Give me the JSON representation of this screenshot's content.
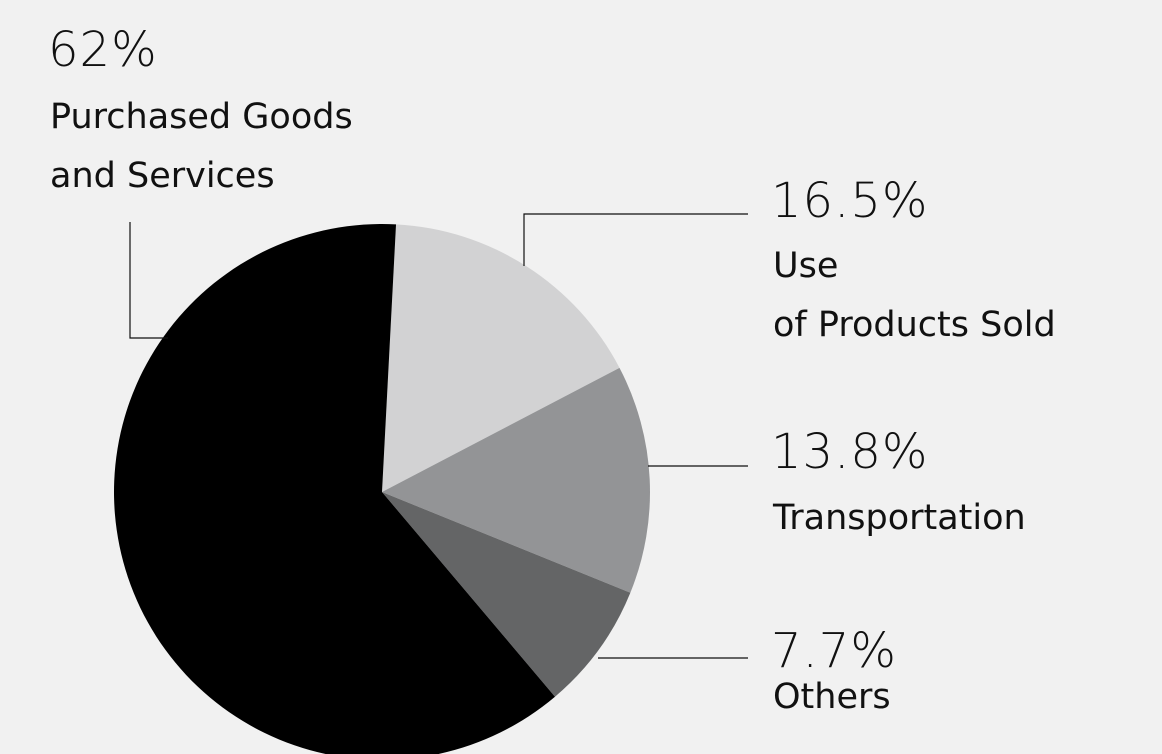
{
  "chart_data": {
    "type": "pie",
    "slices": [
      {
        "label_lines": [
          "Purchased Goods",
          "and Services"
        ],
        "percent_label": "62%",
        "value": 62,
        "color": "#000000"
      },
      {
        "label_lines": [
          "Use",
          "of Products Sold"
        ],
        "percent_label": "16.5%",
        "value": 16.5,
        "color": "#d2d2d3"
      },
      {
        "label_lines": [
          "Transportation"
        ],
        "percent_label": "13.8%",
        "value": 13.8,
        "color": "#939496"
      },
      {
        "label_lines": [
          "Others"
        ],
        "percent_label": "7.7%",
        "value": 7.7,
        "color": "#646566"
      }
    ],
    "legend": "none",
    "background": "#f1f1f1"
  }
}
